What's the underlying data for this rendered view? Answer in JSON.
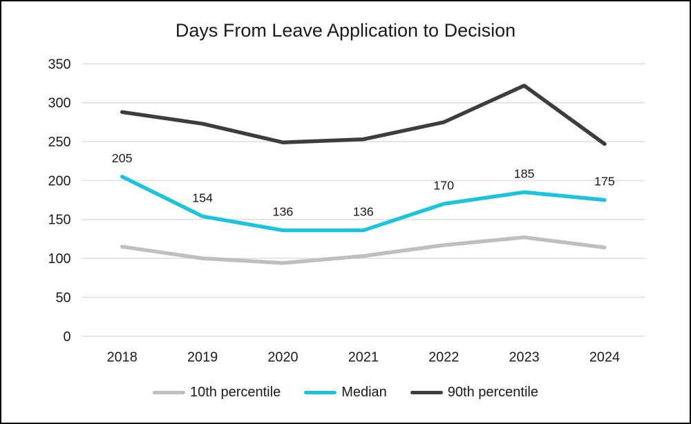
{
  "window": {
    "background_color": "#ffffff",
    "frame_border_color": "#000000"
  },
  "chart_data": {
    "type": "line",
    "title": "Days From Leave Application to Decision",
    "categories": [
      "2018",
      "2019",
      "2020",
      "2021",
      "2022",
      "2023",
      "2024"
    ],
    "series": [
      {
        "name": "10th percentile",
        "color": "#bfbfbf",
        "values": [
          115,
          100,
          94,
          103,
          117,
          127,
          114
        ],
        "data_labels": false
      },
      {
        "name": "Median",
        "color": "#1cc3de",
        "values": [
          205,
          154,
          136,
          136,
          170,
          185,
          175
        ],
        "data_labels": true
      },
      {
        "name": "90th percentile",
        "color": "#3d3d3d",
        "values": [
          288,
          273,
          249,
          253,
          275,
          322,
          247
        ],
        "data_labels": false
      }
    ],
    "xlabel": "",
    "ylabel": "",
    "ylim": [
      0,
      350
    ],
    "yticks": [
      0,
      50,
      100,
      150,
      200,
      250,
      300,
      350
    ],
    "grid": true,
    "gridline_color": "#dedede",
    "axis_text_color": "#1a1a1a",
    "legend_position": "bottom"
  }
}
